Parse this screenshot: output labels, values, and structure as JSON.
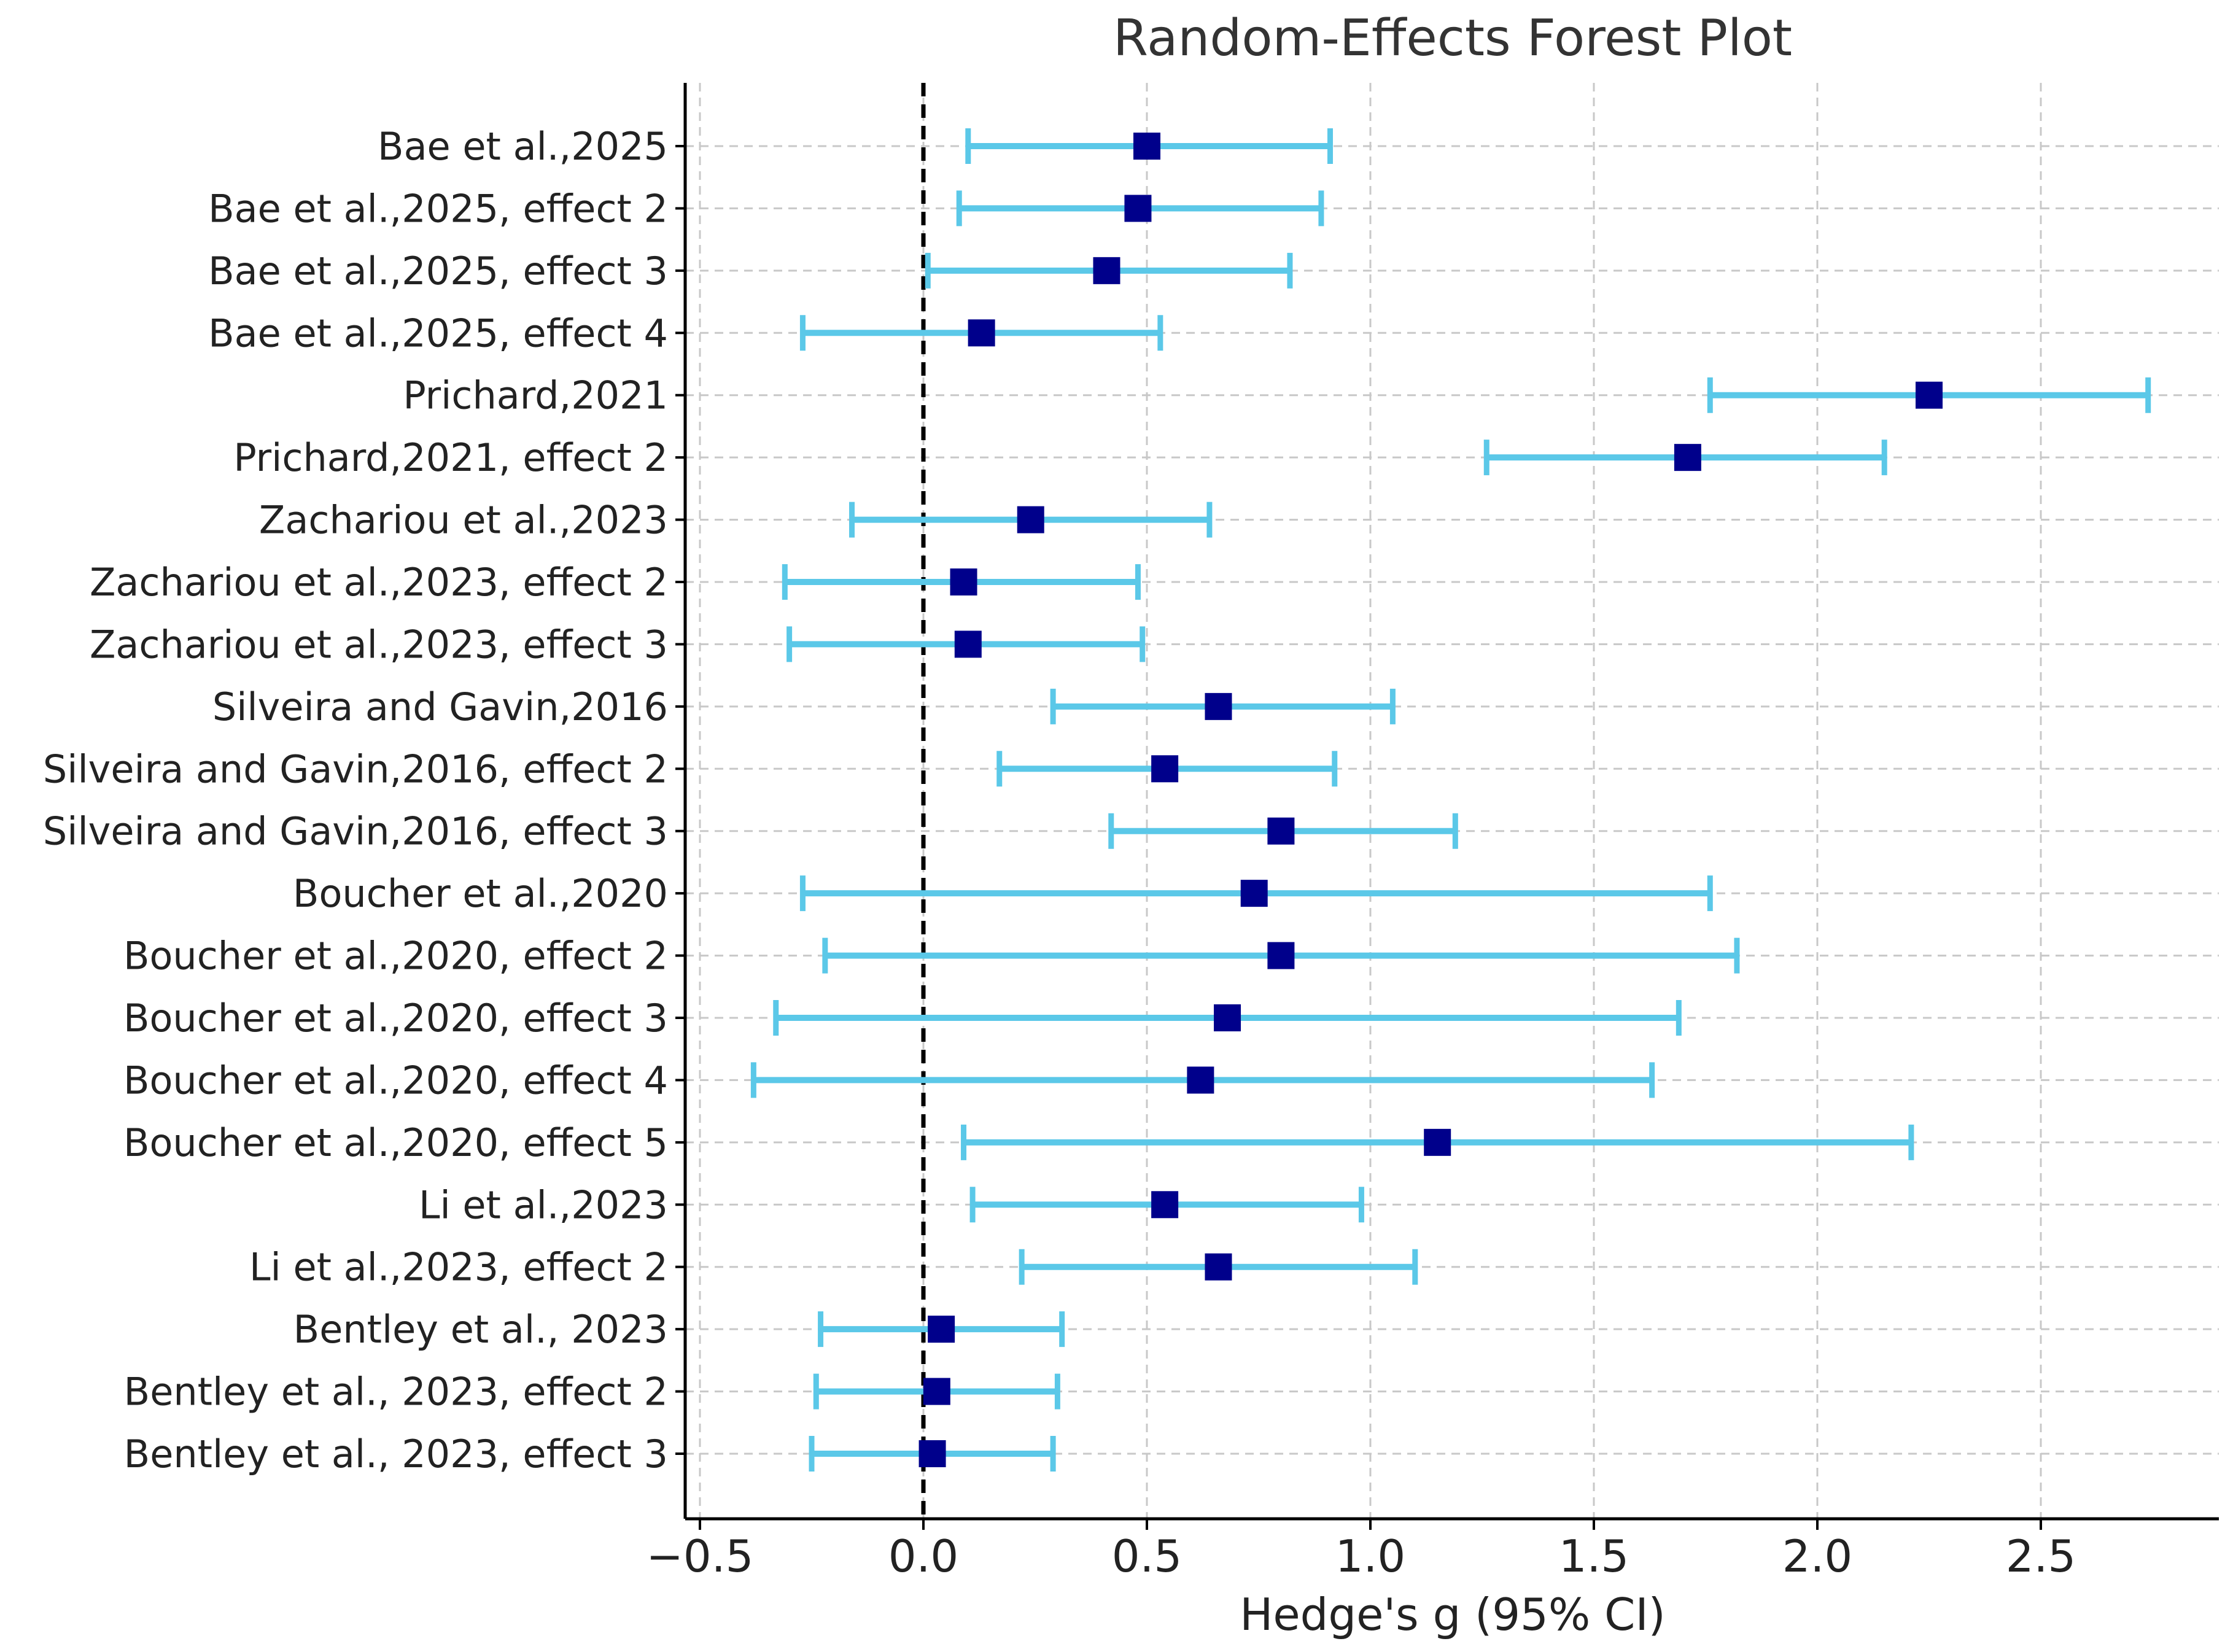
{
  "chart_data": {
    "type": "forest",
    "title": "Random-Effects Forest Plot",
    "xlabel": "Hedge's g (95% CI)",
    "ylabel": "",
    "xlim": [
      -0.55,
      2.9
    ],
    "xticks": [
      -0.5,
      0.0,
      0.5,
      1.0,
      1.5,
      2.0,
      2.5
    ],
    "xtick_labels": [
      "−0.5",
      "0.0",
      "0.5",
      "1.0",
      "1.5",
      "2.0",
      "2.5"
    ],
    "reference_line": 0,
    "grid": true,
    "colors": {
      "ci": "#5bc8e8",
      "point": "#00008b",
      "grid": "#c8c8c8",
      "axis": "#000000",
      "text": "#222222",
      "title": "#333333"
    },
    "studies": [
      {
        "label": "Bae et al.,2025",
        "g": 0.5,
        "lower": 0.1,
        "upper": 0.91
      },
      {
        "label": "Bae et al.,2025, effect 2",
        "g": 0.48,
        "lower": 0.08,
        "upper": 0.89
      },
      {
        "label": "Bae et al.,2025, effect 3",
        "g": 0.41,
        "lower": 0.01,
        "upper": 0.82
      },
      {
        "label": "Bae et al.,2025, effect 4",
        "g": 0.13,
        "lower": -0.27,
        "upper": 0.53
      },
      {
        "label": "Prichard,2021",
        "g": 2.25,
        "lower": 1.76,
        "upper": 2.74
      },
      {
        "label": "Prichard,2021, effect 2",
        "g": 1.71,
        "lower": 1.26,
        "upper": 2.15
      },
      {
        "label": "Zachariou et al.,2023",
        "g": 0.24,
        "lower": -0.16,
        "upper": 0.64
      },
      {
        "label": "Zachariou et al.,2023, effect 2",
        "g": 0.09,
        "lower": -0.31,
        "upper": 0.48
      },
      {
        "label": "Zachariou et al.,2023, effect 3",
        "g": 0.1,
        "lower": -0.3,
        "upper": 0.49
      },
      {
        "label": "Silveira and Gavin,2016",
        "g": 0.66,
        "lower": 0.29,
        "upper": 1.05
      },
      {
        "label": "Silveira and Gavin,2016, effect 2",
        "g": 0.54,
        "lower": 0.17,
        "upper": 0.92
      },
      {
        "label": "Silveira and Gavin,2016, effect 3",
        "g": 0.8,
        "lower": 0.42,
        "upper": 1.19
      },
      {
        "label": "Boucher et al.,2020",
        "g": 0.74,
        "lower": -0.27,
        "upper": 1.76
      },
      {
        "label": "Boucher et al.,2020, effect 2",
        "g": 0.8,
        "lower": -0.22,
        "upper": 1.82
      },
      {
        "label": "Boucher et al.,2020, effect 3",
        "g": 0.68,
        "lower": -0.33,
        "upper": 1.69
      },
      {
        "label": "Boucher et al.,2020, effect 4",
        "g": 0.62,
        "lower": -0.38,
        "upper": 1.63
      },
      {
        "label": "Boucher et al.,2020, effect 5",
        "g": 1.15,
        "lower": 0.09,
        "upper": 2.21
      },
      {
        "label": "Li et al.,2023",
        "g": 0.54,
        "lower": 0.11,
        "upper": 0.98
      },
      {
        "label": "Li et al.,2023, effect 2",
        "g": 0.66,
        "lower": 0.22,
        "upper": 1.1
      },
      {
        "label": "Bentley et al., 2023",
        "g": 0.04,
        "lower": -0.23,
        "upper": 0.31
      },
      {
        "label": "Bentley et al., 2023, effect 2",
        "g": 0.03,
        "lower": -0.24,
        "upper": 0.3
      },
      {
        "label": "Bentley et al., 2023, effect 3",
        "g": 0.02,
        "lower": -0.25,
        "upper": 0.29
      }
    ]
  }
}
